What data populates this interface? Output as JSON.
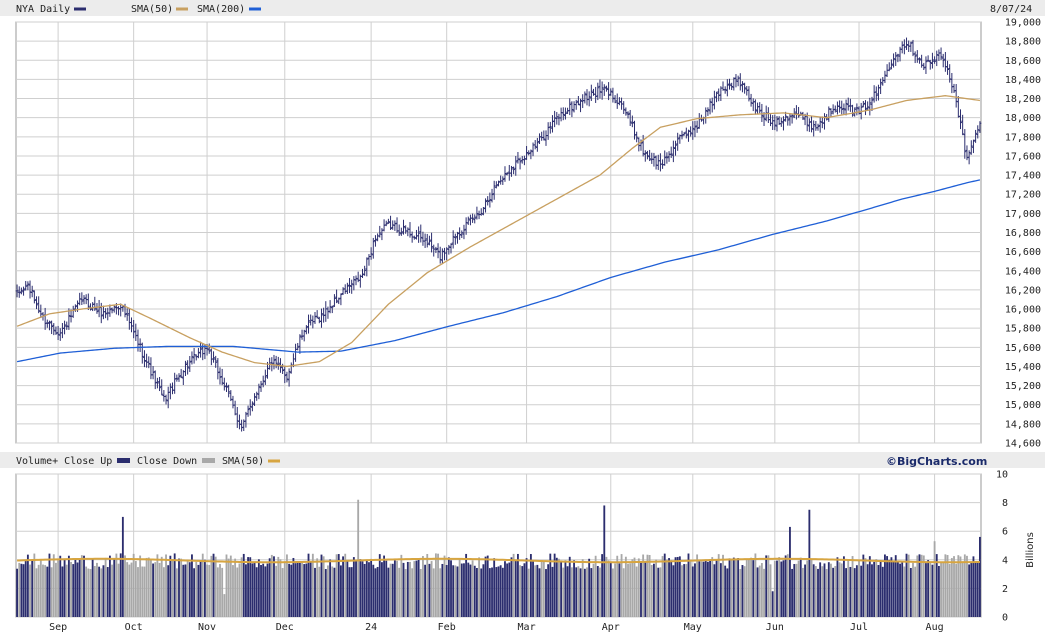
{
  "header": {
    "symbol_label": "NYA Daily",
    "sma50_label": "SMA(50)",
    "sma200_label": "SMA(200)",
    "date": "8/07/24"
  },
  "volume_header": {
    "title": "Volume+ Close Up",
    "close_down_label": "Close Down",
    "sma_label": "SMA(50)",
    "brand": "©BigCharts.com",
    "unit_label": "Billions"
  },
  "colors": {
    "price_bar": "#2b2d6e",
    "sma50": "#c8a060",
    "sma200": "#1f5fd6",
    "vol_up": "#2b2d6e",
    "vol_down": "#a8a8a8",
    "vol_sma": "#d7a540",
    "grid": "#cfcfcf",
    "header_bg": "#ececec"
  },
  "chart_data": [
    {
      "type": "line",
      "subtype": "ohlc-price",
      "title": "NYA Daily",
      "x_ticks": [
        "Sep",
        "Oct",
        "Nov",
        "Dec",
        "24",
        "Feb",
        "Mar",
        "Apr",
        "May",
        "Jun",
        "Jul",
        "Aug"
      ],
      "x_tick_days": [
        19,
        54,
        88,
        124,
        164,
        199,
        236,
        275,
        313,
        351,
        390,
        425
      ],
      "x_range_days": [
        0,
        435
      ],
      "ylim": [
        14600,
        19000
      ],
      "y_ticks": [
        14600,
        14800,
        15000,
        15200,
        15400,
        15600,
        15800,
        16000,
        16200,
        16400,
        16600,
        16800,
        17000,
        17200,
        17400,
        17600,
        17800,
        18000,
        18200,
        18400,
        18600,
        18800,
        19000
      ],
      "y_tick_labels": [
        "14,600",
        "14,800",
        "15,000",
        "15,200",
        "15,400",
        "15,600",
        "15,800",
        "16,000",
        "16,200",
        "16,400",
        "16,600",
        "16,800",
        "17,000",
        "17,200",
        "17,400",
        "17,600",
        "17,800",
        "18,000",
        "18,200",
        "18,400",
        "18,600",
        "18,800",
        "19,000"
      ],
      "close_anchors": [
        [
          0,
          16150
        ],
        [
          5,
          16250
        ],
        [
          12,
          15900
        ],
        [
          20,
          15750
        ],
        [
          30,
          16100
        ],
        [
          40,
          15950
        ],
        [
          48,
          16050
        ],
        [
          58,
          15550
        ],
        [
          68,
          15050
        ],
        [
          78,
          15400
        ],
        [
          88,
          15600
        ],
        [
          98,
          15100
        ],
        [
          104,
          14750
        ],
        [
          110,
          15100
        ],
        [
          118,
          15450
        ],
        [
          125,
          15300
        ],
        [
          133,
          15800
        ],
        [
          142,
          15950
        ],
        [
          152,
          16200
        ],
        [
          160,
          16350
        ],
        [
          166,
          16750
        ],
        [
          172,
          16880
        ],
        [
          180,
          16820
        ],
        [
          190,
          16700
        ],
        [
          196,
          16550
        ],
        [
          204,
          16800
        ],
        [
          214,
          17000
        ],
        [
          222,
          17300
        ],
        [
          232,
          17550
        ],
        [
          240,
          17700
        ],
        [
          250,
          18000
        ],
        [
          262,
          18200
        ],
        [
          272,
          18300
        ],
        [
          280,
          18150
        ],
        [
          290,
          17650
        ],
        [
          298,
          17500
        ],
        [
          306,
          17750
        ],
        [
          316,
          17950
        ],
        [
          326,
          18300
        ],
        [
          334,
          18400
        ],
        [
          342,
          18100
        ],
        [
          350,
          17950
        ],
        [
          360,
          18050
        ],
        [
          370,
          17900
        ],
        [
          380,
          18150
        ],
        [
          390,
          18050
        ],
        [
          398,
          18250
        ],
        [
          406,
          18650
        ],
        [
          412,
          18800
        ],
        [
          420,
          18550
        ],
        [
          428,
          18650
        ],
        [
          434,
          18300
        ],
        [
          440,
          17550
        ],
        [
          446,
          17950
        ]
      ],
      "sma50_anchors": [
        [
          0,
          15820
        ],
        [
          15,
          15950
        ],
        [
          30,
          16000
        ],
        [
          48,
          16050
        ],
        [
          62,
          15900
        ],
        [
          80,
          15700
        ],
        [
          95,
          15550
        ],
        [
          110,
          15440
        ],
        [
          125,
          15400
        ],
        [
          140,
          15450
        ],
        [
          155,
          15650
        ],
        [
          172,
          16050
        ],
        [
          190,
          16380
        ],
        [
          210,
          16650
        ],
        [
          230,
          16900
        ],
        [
          250,
          17150
        ],
        [
          270,
          17400
        ],
        [
          285,
          17680
        ],
        [
          298,
          17900
        ],
        [
          315,
          17990
        ],
        [
          335,
          18030
        ],
        [
          355,
          18050
        ],
        [
          375,
          18000
        ],
        [
          395,
          18080
        ],
        [
          412,
          18180
        ],
        [
          430,
          18230
        ],
        [
          446,
          18180
        ]
      ],
      "sma200_anchors": [
        [
          0,
          15450
        ],
        [
          20,
          15540
        ],
        [
          45,
          15590
        ],
        [
          70,
          15610
        ],
        [
          100,
          15610
        ],
        [
          130,
          15550
        ],
        [
          150,
          15560
        ],
        [
          175,
          15670
        ],
        [
          200,
          15820
        ],
        [
          225,
          15960
        ],
        [
          250,
          16130
        ],
        [
          275,
          16330
        ],
        [
          300,
          16490
        ],
        [
          325,
          16620
        ],
        [
          350,
          16780
        ],
        [
          375,
          16920
        ],
        [
          395,
          17050
        ],
        [
          410,
          17150
        ],
        [
          425,
          17230
        ],
        [
          440,
          17320
        ],
        [
          446,
          17350
        ]
      ]
    },
    {
      "type": "bar",
      "subtype": "volume",
      "title": "Volume+ Close Up",
      "ylabel": "Billions",
      "ylim": [
        0,
        10
      ],
      "y_ticks": [
        0,
        2,
        4,
        6,
        8,
        10
      ],
      "y_tick_labels": [
        "0",
        "2",
        "4",
        "6",
        "8",
        "10"
      ],
      "legend": [
        "Close Up",
        "Close Down",
        "SMA(50)"
      ],
      "base_volume": 3.9,
      "spikes": [
        [
          49,
          7.0
        ],
        [
          158,
          8.2
        ],
        [
          272,
          7.8
        ],
        [
          358,
          6.3
        ],
        [
          367,
          7.5
        ],
        [
          425,
          5.3
        ],
        [
          446,
          5.6
        ]
      ],
      "sma50_level": 3.95
    }
  ]
}
